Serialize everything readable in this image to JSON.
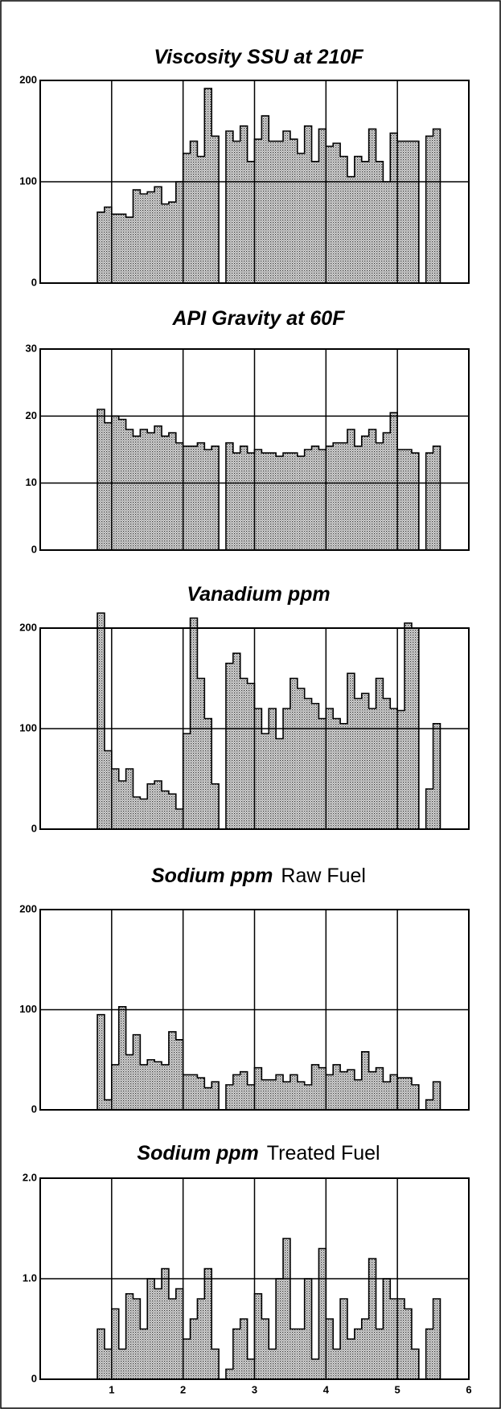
{
  "chart_data": [
    {
      "type": "histogram",
      "title": "Viscosity SSU at 210F",
      "bins": [
        0.8,
        0.9,
        1.0,
        1.1,
        1.2,
        1.3,
        1.4,
        1.5,
        1.6,
        1.7,
        1.8,
        1.9,
        2.0,
        2.1,
        2.2,
        2.3,
        2.4,
        2.5,
        2.6,
        2.7,
        2.8,
        2.9,
        3.0,
        3.1,
        3.2,
        3.3,
        3.4,
        3.5,
        3.6,
        3.7,
        3.8,
        3.9,
        4.0,
        4.1,
        4.2,
        4.3,
        4.4,
        4.5,
        4.6,
        4.7,
        4.8,
        4.9,
        5.0,
        5.1,
        5.2,
        5.3,
        5.4,
        5.5,
        5.6
      ],
      "values": [
        70,
        75,
        68,
        68,
        65,
        92,
        88,
        90,
        95,
        78,
        80,
        100,
        128,
        140,
        125,
        192,
        145,
        null,
        150,
        140,
        155,
        120,
        142,
        165,
        140,
        140,
        150,
        142,
        128,
        155,
        120,
        152,
        135,
        138,
        125,
        105,
        125,
        120,
        152,
        120,
        100,
        148,
        140,
        140,
        140,
        null,
        145,
        152
      ],
      "xlim": [
        0,
        6
      ],
      "xticks": [
        1,
        2,
        3,
        4,
        5
      ],
      "xtick_labels": false,
      "ylim": [
        0,
        200
      ],
      "yticks": [
        0,
        100,
        200
      ],
      "grid": true
    },
    {
      "type": "histogram",
      "title": "API Gravity at 60F",
      "bins": [
        0.8,
        0.9,
        1.0,
        1.1,
        1.2,
        1.3,
        1.4,
        1.5,
        1.6,
        1.7,
        1.8,
        1.9,
        2.0,
        2.1,
        2.2,
        2.3,
        2.4,
        2.5,
        2.6,
        2.7,
        2.8,
        2.9,
        3.0,
        3.1,
        3.2,
        3.3,
        3.4,
        3.5,
        3.6,
        3.7,
        3.8,
        3.9,
        4.0,
        4.1,
        4.2,
        4.3,
        4.4,
        4.5,
        4.6,
        4.7,
        4.8,
        4.9,
        5.0,
        5.1,
        5.2,
        5.3,
        5.4,
        5.5,
        5.6
      ],
      "values": [
        21,
        19,
        20,
        19.5,
        18,
        17,
        18,
        17.5,
        18.5,
        17,
        17.5,
        16,
        15.5,
        15.5,
        16,
        15,
        15.5,
        null,
        16,
        14.5,
        15.5,
        14.5,
        15,
        14.5,
        14.5,
        14,
        14.5,
        14.5,
        14,
        15,
        15.5,
        15,
        15.5,
        16,
        16,
        18,
        15.5,
        17,
        18,
        16,
        17.5,
        20.5,
        15,
        15,
        14.5,
        null,
        14.5,
        15.5
      ],
      "xlim": [
        0,
        6
      ],
      "xticks": [
        1,
        2,
        3,
        4,
        5
      ],
      "xtick_labels": false,
      "ylim": [
        0,
        30
      ],
      "yticks": [
        0,
        10,
        20,
        30
      ],
      "grid": true
    },
    {
      "type": "histogram",
      "title": "Vanadium ppm",
      "bins": [
        0.8,
        0.9,
        1.0,
        1.1,
        1.2,
        1.3,
        1.4,
        1.5,
        1.6,
        1.7,
        1.8,
        1.9,
        2.0,
        2.1,
        2.2,
        2.3,
        2.4,
        2.5,
        2.6,
        2.7,
        2.8,
        2.9,
        3.0,
        3.1,
        3.2,
        3.3,
        3.4,
        3.5,
        3.6,
        3.7,
        3.8,
        3.9,
        4.0,
        4.1,
        4.2,
        4.3,
        4.4,
        4.5,
        4.6,
        4.7,
        4.8,
        4.9,
        5.0,
        5.1,
        5.2,
        5.3,
        5.4,
        5.5,
        5.6
      ],
      "values": [
        215,
        78,
        60,
        48,
        60,
        32,
        30,
        45,
        48,
        38,
        35,
        20,
        95,
        210,
        150,
        110,
        45,
        null,
        165,
        175,
        150,
        145,
        120,
        95,
        120,
        90,
        120,
        150,
        140,
        130,
        125,
        110,
        120,
        110,
        105,
        155,
        130,
        135,
        120,
        150,
        130,
        120,
        118,
        205,
        200,
        null,
        40,
        105
      ],
      "xlim": [
        0,
        6
      ],
      "xticks": [
        1,
        2,
        3,
        4,
        5
      ],
      "xtick_labels": false,
      "ylim": [
        0,
        200
      ],
      "yticks": [
        0,
        100,
        200
      ],
      "grid": true
    },
    {
      "type": "histogram",
      "title": "Sodium ppm",
      "subtitle": "Raw Fuel",
      "bins": [
        0.8,
        0.9,
        1.0,
        1.1,
        1.2,
        1.3,
        1.4,
        1.5,
        1.6,
        1.7,
        1.8,
        1.9,
        2.0,
        2.1,
        2.2,
        2.3,
        2.4,
        2.5,
        2.6,
        2.7,
        2.8,
        2.9,
        3.0,
        3.1,
        3.2,
        3.3,
        3.4,
        3.5,
        3.6,
        3.7,
        3.8,
        3.9,
        4.0,
        4.1,
        4.2,
        4.3,
        4.4,
        4.5,
        4.6,
        4.7,
        4.8,
        4.9,
        5.0,
        5.1,
        5.2,
        5.3,
        5.4,
        5.5,
        5.6
      ],
      "values": [
        95,
        10,
        45,
        103,
        55,
        75,
        45,
        50,
        48,
        45,
        78,
        70,
        35,
        35,
        32,
        22,
        28,
        null,
        25,
        35,
        38,
        25,
        42,
        30,
        30,
        35,
        28,
        35,
        28,
        25,
        45,
        42,
        35,
        45,
        38,
        40,
        30,
        58,
        38,
        42,
        28,
        35,
        32,
        32,
        25,
        null,
        10,
        28
      ],
      "xlim": [
        0,
        6
      ],
      "xticks": [
        1,
        2,
        3,
        4,
        5
      ],
      "xtick_labels": false,
      "ylim": [
        0,
        200
      ],
      "yticks": [
        0,
        100,
        200
      ],
      "grid": true
    },
    {
      "type": "histogram",
      "title": "Sodium ppm",
      "subtitle": "Treated Fuel",
      "bins": [
        0.8,
        0.9,
        1.0,
        1.1,
        1.2,
        1.3,
        1.4,
        1.5,
        1.6,
        1.7,
        1.8,
        1.9,
        2.0,
        2.1,
        2.2,
        2.3,
        2.4,
        2.5,
        2.6,
        2.7,
        2.8,
        2.9,
        3.0,
        3.1,
        3.2,
        3.3,
        3.4,
        3.5,
        3.6,
        3.7,
        3.8,
        3.9,
        4.0,
        4.1,
        4.2,
        4.3,
        4.4,
        4.5,
        4.6,
        4.7,
        4.8,
        4.9,
        5.0,
        5.1,
        5.2,
        5.3,
        5.4,
        5.5,
        5.6
      ],
      "values": [
        0.5,
        0.3,
        0.7,
        0.3,
        0.85,
        0.8,
        0.5,
        1.0,
        0.9,
        1.1,
        0.8,
        0.9,
        0.4,
        0.6,
        0.8,
        1.1,
        0.3,
        null,
        0.1,
        0.5,
        0.6,
        0.2,
        0.85,
        0.6,
        0.3,
        1.0,
        1.4,
        0.5,
        0.5,
        1.0,
        0.2,
        1.3,
        0.6,
        0.3,
        0.8,
        0.4,
        0.5,
        0.6,
        1.2,
        0.5,
        1.0,
        0.8,
        0.8,
        0.7,
        0.3,
        null,
        0.5,
        0.8
      ],
      "xlim": [
        0,
        6
      ],
      "xticks": [
        1,
        2,
        3,
        4,
        5,
        6
      ],
      "xtick_labels": true,
      "ylim": [
        0,
        2
      ],
      "yticks": [
        0,
        {
          "value": 1,
          "label": "1.0"
        },
        {
          "value": 2,
          "label": "2.0"
        }
      ],
      "grid": true
    }
  ]
}
